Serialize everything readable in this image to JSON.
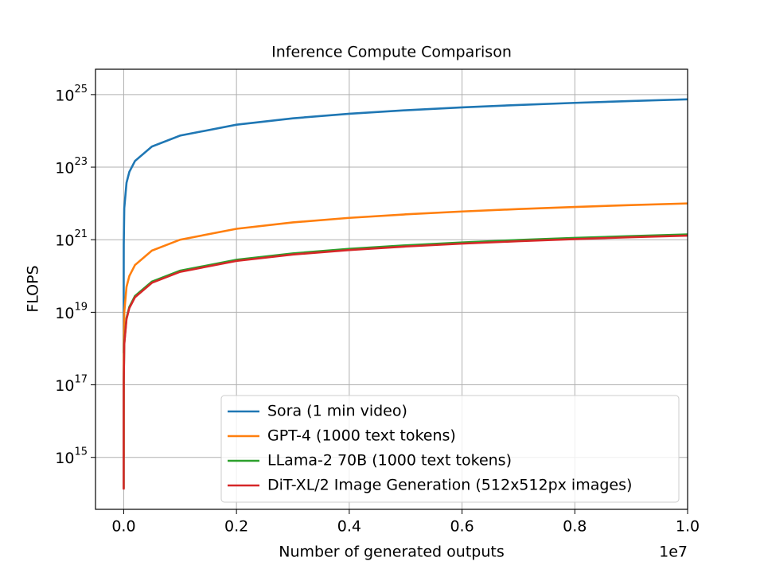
{
  "chart_data": {
    "type": "line",
    "title": "Inference Compute Comparison",
    "x_label": "Number of generated outputs",
    "y_label": "FLOPS",
    "x_offset_label": "1e7",
    "yscale": "log",
    "grid": true,
    "legend": "lower right",
    "x": [
      1e-07,
      1e-06,
      1e-05,
      0.0001,
      0.001,
      0.005,
      0.01,
      0.02,
      0.05,
      0.1,
      0.2,
      0.3,
      0.4,
      0.5,
      0.6,
      0.7,
      0.8,
      0.9,
      1.0
    ],
    "series": [
      {
        "name": "Sora (1 min video)",
        "color": "#1f77b4",
        "values": [
          7.4e+17,
          7.4e+18,
          7.4e+19,
          7.4e+20,
          7.4e+21,
          3.7e+22,
          7.4e+22,
          1.48e+23,
          3.7e+23,
          7.4e+23,
          1.48e+24,
          2.22e+24,
          2.96e+24,
          3.7e+24,
          4.44e+24,
          5.18e+24,
          5.92e+24,
          6.66e+24,
          7.4e+24
        ]
      },
      {
        "name": "GPT-4 (1000 text tokens)",
        "color": "#ff7f0e",
        "values": [
          1000000000000000.0,
          1e+16,
          1e+17,
          1e+18,
          1e+19,
          5e+19,
          1e+20,
          2e+20,
          5e+20,
          1e+21,
          2e+21,
          3e+21,
          4e+21,
          5e+21,
          6e+21,
          7e+21,
          8e+21,
          9e+21,
          1e+22
        ]
      },
      {
        "name": "LLama-2 70B (1000 text tokens)",
        "color": "#2ca02c",
        "values": [
          140000000000000.0,
          1400000000000000.0,
          1.4e+16,
          1.4e+17,
          1.4e+18,
          7e+18,
          1.4e+19,
          2.8e+19,
          7e+19,
          1.4e+20,
          2.8e+20,
          4.2e+20,
          5.6e+20,
          7e+20,
          8.4e+20,
          9.8e+20,
          1.12e+21,
          1.26e+21,
          1.4e+21
        ]
      },
      {
        "name": "DiT-XL/2 Image Generation (512x512px images)",
        "color": "#d62728",
        "values": [
          130000000000000.0,
          1300000000000000.0,
          1.3e+16,
          1.3e+17,
          1.3e+18,
          6.5e+18,
          1.3e+19,
          2.6e+19,
          6.5e+19,
          1.3e+20,
          2.6e+20,
          3.9e+20,
          5.2e+20,
          6.5e+20,
          7.8e+20,
          9.1e+20,
          1.04e+21,
          1.17e+21,
          1.3e+21
        ]
      }
    ],
    "xlim": [
      -0.05,
      1.0
    ],
    "ylim": [
      37000000000000.0,
      5e+25
    ],
    "xticks": [
      {
        "value": 0,
        "label": "0.0"
      },
      0.2,
      0.4,
      0.6,
      0.8,
      {
        "value": 1,
        "label": "1.0"
      }
    ],
    "yticks": [
      {
        "value": 1000000000000000.0,
        "label": "10^15"
      },
      {
        "value": 1e+17,
        "label": "10^17"
      },
      {
        "value": 1e+19,
        "label": "10^19"
      },
      {
        "value": 1e+21,
        "label": "10^21"
      },
      {
        "value": 1e+23,
        "label": "10^23"
      },
      {
        "value": 1e+25,
        "label": "10^25"
      }
    ]
  }
}
